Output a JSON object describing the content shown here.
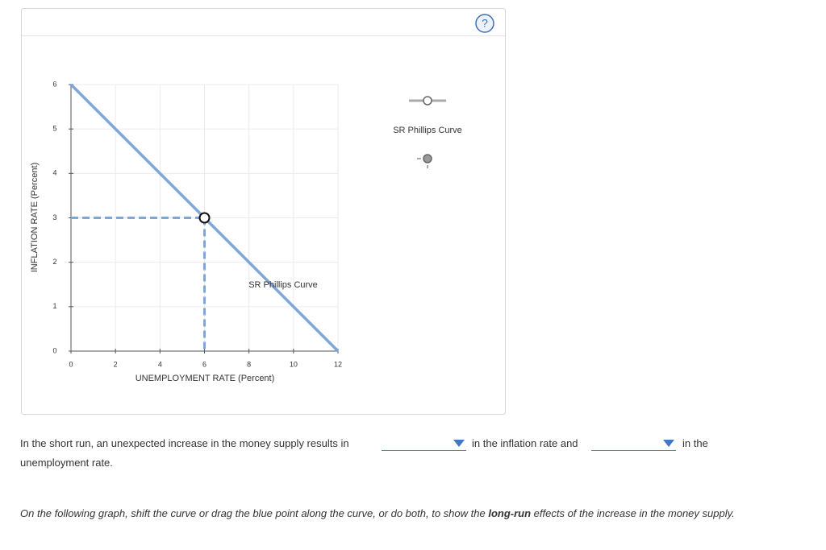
{
  "chart_data": {
    "type": "line",
    "x_label": "UNEMPLOYMENT RATE (Percent)",
    "y_label": "INFLATION RATE (Percent)",
    "xlim": [
      0,
      12
    ],
    "ylim": [
      0,
      6
    ],
    "xticks": [
      0,
      2,
      4,
      6,
      8,
      10,
      12
    ],
    "yticks": [
      0,
      1,
      2,
      3,
      4,
      5,
      6
    ],
    "grid": true,
    "series": [
      {
        "name": "SR Phillips Curve",
        "color": "#7ea6d8",
        "x": [
          0,
          12
        ],
        "values": [
          6,
          0
        ]
      }
    ],
    "point": {
      "x": 6,
      "y": 3
    }
  },
  "help": "?",
  "question": {
    "before": "In the short run, an unexpected increase in the money supply results in",
    "middle": "in the inflation rate and",
    "after": "in the",
    "after_wrap": "unemployment rate."
  },
  "instruction": {
    "before": "On the following graph, shift the curve or drag the blue point along the curve, or do both, to show the",
    "emphasis": "long-run",
    "after": "effects of the increase in the money supply."
  }
}
